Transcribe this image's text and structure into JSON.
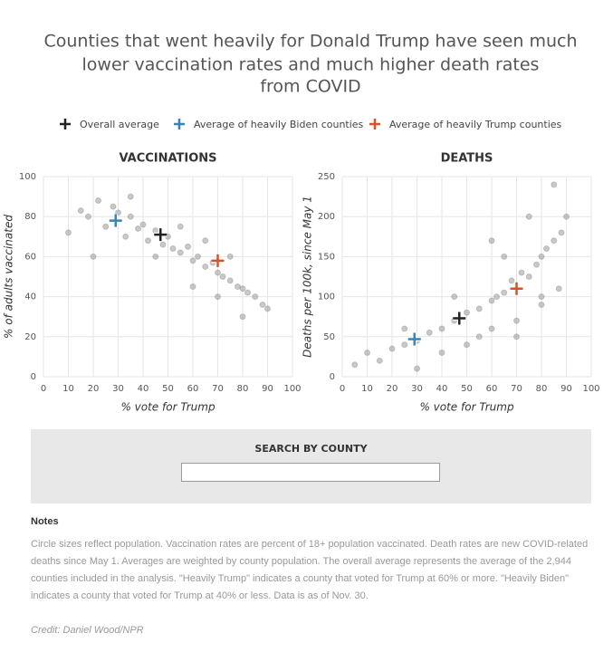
{
  "title": [
    "Counties that went heavily for Donald Trump have seen much",
    "lower vaccination rates and much higher death rates",
    "from COVID"
  ],
  "legend": [
    {
      "name": "Overall average",
      "color": "#222222"
    },
    {
      "name": "Average of heavily Biden counties",
      "color": "#3a83b3"
    },
    {
      "name": "Average of heavily Trump counties",
      "color": "#d9502a"
    }
  ],
  "chart_data": [
    {
      "type": "scatter",
      "title": "VACCINATIONS",
      "x_label": "% vote for Trump",
      "y_label": "% of adults vaccinated",
      "xlim": [
        0,
        100
      ],
      "xticks": [
        0,
        10,
        20,
        30,
        40,
        50,
        60,
        70,
        80,
        90,
        100
      ],
      "ylim": [
        0,
        100
      ],
      "yticks": [
        0,
        20,
        40,
        60,
        80,
        100
      ],
      "grid": true,
      "color": "#888888",
      "points": {
        "x": [
          10,
          15,
          18,
          22,
          25,
          28,
          30,
          33,
          35,
          38,
          40,
          42,
          45,
          48,
          50,
          52,
          55,
          58,
          60,
          62,
          65,
          68,
          70,
          72,
          75,
          78,
          80,
          82,
          85,
          88,
          90,
          55,
          65,
          75,
          45,
          35,
          20,
          60,
          70,
          80
        ],
        "values": [
          72,
          83,
          80,
          88,
          75,
          85,
          82,
          70,
          80,
          74,
          76,
          68,
          73,
          66,
          70,
          64,
          62,
          65,
          58,
          60,
          55,
          57,
          52,
          50,
          48,
          45,
          44,
          42,
          40,
          36,
          34,
          75,
          68,
          60,
          60,
          90,
          60,
          45,
          40,
          30
        ]
      },
      "averages": {
        "x": [
          47,
          29,
          70
        ],
        "values": [
          71,
          78,
          58
        ]
      }
    },
    {
      "type": "scatter",
      "title": "DEATHS",
      "x_label": "% vote for Trump",
      "y_label": "Deaths per 100k, since May 1",
      "xlim": [
        0,
        100
      ],
      "xticks": [
        0,
        10,
        20,
        30,
        40,
        50,
        60,
        70,
        80,
        90,
        100
      ],
      "ylim": [
        0,
        250
      ],
      "yticks": [
        0,
        50,
        100,
        150,
        200,
        250
      ],
      "grid": true,
      "color": "#888888",
      "points": {
        "x": [
          5,
          10,
          15,
          20,
          25,
          30,
          35,
          40,
          45,
          50,
          55,
          60,
          62,
          65,
          68,
          70,
          72,
          75,
          78,
          80,
          82,
          85,
          88,
          90,
          40,
          50,
          60,
          70,
          80,
          85,
          30,
          45,
          55,
          65,
          75,
          87,
          25,
          60,
          70,
          80
        ],
        "values": [
          15,
          30,
          20,
          35,
          40,
          45,
          55,
          60,
          70,
          80,
          85,
          95,
          100,
          105,
          120,
          110,
          130,
          125,
          140,
          150,
          160,
          170,
          180,
          200,
          30,
          40,
          60,
          70,
          90,
          240,
          10,
          100,
          50,
          150,
          200,
          110,
          60,
          170,
          50,
          100
        ]
      },
      "averages": {
        "x": [
          47,
          29,
          70
        ],
        "values": [
          73,
          47,
          110
        ]
      }
    }
  ],
  "search": {
    "label": "SEARCH BY COUNTY"
  },
  "notes": {
    "heading": "Notes",
    "text": "Circle sizes reflect population. Vaccination rates are percent of 18+ population vaccinated. Death rates are new COVID-related deaths since May 1. Averages are weighted by county population. The overall average represents the average of the 2,944 counties included in the analysis. \"Heavily Trump\" indicates a county that voted for Trump at 60% or more. \"Heavily Biden\" indicates a county that voted for Trump at 40% or less. Data is as of Nov. 30.",
    "credit": "Credit: Daniel Wood/NPR"
  }
}
